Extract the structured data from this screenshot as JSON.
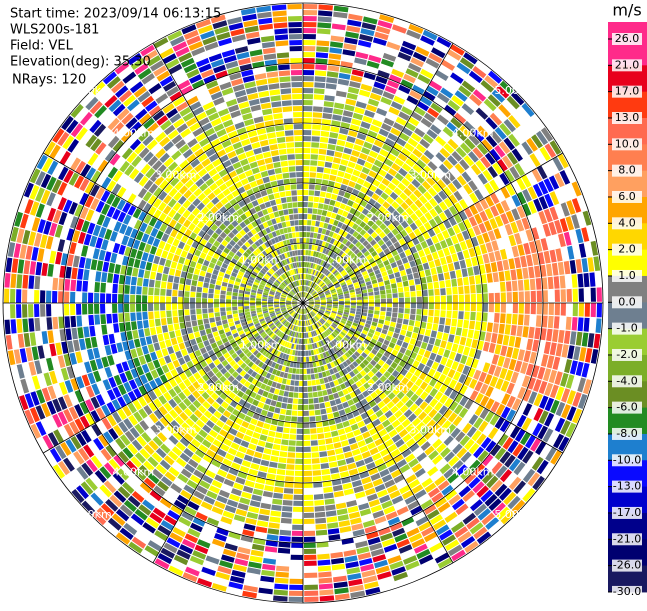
{
  "chart_data": {
    "type": "ppi",
    "info": [
      "Start time: 2023/09/14 06:13:15",
      "WLS200s-181",
      "Field: VEL",
      "Elevation(deg): 35.30",
      "NRays: 120"
    ],
    "range_rings": [
      "1.00km",
      "2.00km",
      "3.00km",
      "4.00km",
      "5.00km"
    ],
    "colorbar": {
      "unit": "m/s",
      "ticks": [
        {
          "value": 26,
          "label": "26.0"
        },
        {
          "value": 21,
          "label": "21.0"
        },
        {
          "value": 17,
          "label": "17.0"
        },
        {
          "value": 13,
          "label": "13.0"
        },
        {
          "value": 10,
          "label": "10.0"
        },
        {
          "value": 8,
          "label": "8.0"
        },
        {
          "value": 6,
          "label": "6.0"
        },
        {
          "value": 4,
          "label": "4.0"
        },
        {
          "value": 2,
          "label": "2.0"
        },
        {
          "value": 1,
          "label": "1.0"
        },
        {
          "value": 0,
          "label": "0.0"
        },
        {
          "value": -1,
          "label": "-1.0"
        },
        {
          "value": -2,
          "label": "-2.0"
        },
        {
          "value": -4,
          "label": "-4.0"
        },
        {
          "value": -6,
          "label": "-6.0"
        },
        {
          "value": -8,
          "label": "-8.0"
        },
        {
          "value": -10,
          "label": "-10.0"
        },
        {
          "value": -13,
          "label": "-13.0"
        },
        {
          "value": -17,
          "label": "-17.0"
        },
        {
          "value": -21,
          "label": "-21.0"
        },
        {
          "value": -26,
          "label": "-26.0"
        },
        {
          "value": -30,
          "label": "-30.0"
        }
      ],
      "colors": [
        "#ff2a8a",
        "#e8001c",
        "#ff3a10",
        "#ff6a50",
        "#ff7f50",
        "#ffa060",
        "#ffa500",
        "#ffd700",
        "#ffff00",
        "#808080",
        "#6e7f90",
        "#9acd32",
        "#7cae28",
        "#6b8e23",
        "#228b22",
        "#1e7fcf",
        "#0a0aff",
        "#0000cd",
        "#00008b",
        "#000070",
        "#191960"
      ]
    }
  }
}
